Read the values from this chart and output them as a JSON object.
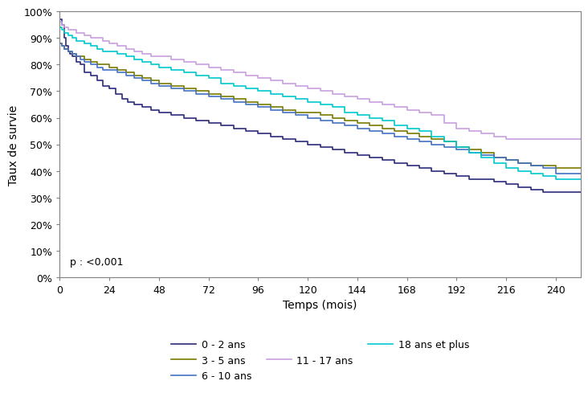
{
  "title": "",
  "xlabel": "Temps (mois)",
  "ylabel": "Taux de survie",
  "xlim": [
    0,
    252
  ],
  "ylim": [
    0.0,
    1.0
  ],
  "xticks": [
    0,
    24,
    48,
    72,
    96,
    120,
    144,
    168,
    192,
    216,
    240
  ],
  "yticks": [
    0.0,
    0.1,
    0.2,
    0.3,
    0.4,
    0.5,
    0.6,
    0.7,
    0.8,
    0.9,
    1.0
  ],
  "pvalue_text": "p : <0,001",
  "legend_entries": [
    "0 - 2 ans",
    "3 - 5 ans",
    "6 - 10 ans",
    "11 - 17 ans",
    "18 ans et plus"
  ],
  "colors": {
    "0-2": "#2b2b7a",
    "3-5": "#7a7a00",
    "6-10": "#4472c4",
    "11-17": "#c8a0e0",
    "18plus": "#00c8d0"
  },
  "series": {
    "0-2": {
      "x": [
        0,
        1,
        2,
        3,
        4,
        5,
        6,
        8,
        10,
        12,
        15,
        18,
        21,
        24,
        27,
        30,
        33,
        36,
        40,
        44,
        48,
        54,
        60,
        66,
        72,
        78,
        84,
        90,
        96,
        102,
        108,
        114,
        120,
        126,
        132,
        138,
        144,
        150,
        156,
        162,
        168,
        174,
        180,
        186,
        192,
        198,
        204,
        210,
        216,
        222,
        228,
        234,
        240,
        246,
        252
      ],
      "y": [
        0.97,
        0.95,
        0.9,
        0.87,
        0.85,
        0.84,
        0.83,
        0.81,
        0.8,
        0.77,
        0.76,
        0.74,
        0.72,
        0.71,
        0.69,
        0.67,
        0.66,
        0.65,
        0.64,
        0.63,
        0.62,
        0.61,
        0.6,
        0.59,
        0.58,
        0.57,
        0.56,
        0.55,
        0.54,
        0.53,
        0.52,
        0.51,
        0.5,
        0.49,
        0.48,
        0.47,
        0.46,
        0.45,
        0.44,
        0.43,
        0.42,
        0.41,
        0.4,
        0.39,
        0.38,
        0.37,
        0.37,
        0.36,
        0.35,
        0.34,
        0.33,
        0.32,
        0.32,
        0.32,
        0.32
      ]
    },
    "3-5": {
      "x": [
        0,
        1,
        2,
        4,
        6,
        8,
        10,
        12,
        15,
        18,
        21,
        24,
        28,
        32,
        36,
        40,
        44,
        48,
        54,
        60,
        66,
        72,
        78,
        84,
        90,
        96,
        102,
        108,
        114,
        120,
        126,
        132,
        138,
        144,
        150,
        156,
        162,
        168,
        174,
        180,
        186,
        192,
        198,
        204,
        210,
        216,
        222,
        228,
        234,
        240,
        246,
        252
      ],
      "y": [
        0.88,
        0.87,
        0.86,
        0.85,
        0.84,
        0.83,
        0.83,
        0.82,
        0.81,
        0.8,
        0.8,
        0.79,
        0.78,
        0.77,
        0.76,
        0.75,
        0.74,
        0.73,
        0.72,
        0.71,
        0.7,
        0.69,
        0.68,
        0.67,
        0.66,
        0.65,
        0.64,
        0.63,
        0.62,
        0.62,
        0.61,
        0.6,
        0.59,
        0.58,
        0.57,
        0.56,
        0.55,
        0.54,
        0.53,
        0.52,
        0.51,
        0.49,
        0.48,
        0.47,
        0.45,
        0.44,
        0.43,
        0.42,
        0.42,
        0.41,
        0.41,
        0.41
      ]
    },
    "6-10": {
      "x": [
        0,
        1,
        2,
        4,
        6,
        8,
        10,
        12,
        15,
        18,
        21,
        24,
        28,
        32,
        36,
        40,
        44,
        48,
        54,
        60,
        66,
        72,
        78,
        84,
        90,
        96,
        102,
        108,
        114,
        120,
        126,
        132,
        138,
        144,
        150,
        156,
        162,
        168,
        174,
        180,
        186,
        192,
        198,
        204,
        210,
        216,
        222,
        228,
        234,
        240,
        246,
        252
      ],
      "y": [
        0.88,
        0.87,
        0.86,
        0.85,
        0.84,
        0.83,
        0.82,
        0.81,
        0.8,
        0.79,
        0.78,
        0.78,
        0.77,
        0.76,
        0.75,
        0.74,
        0.73,
        0.72,
        0.71,
        0.7,
        0.69,
        0.68,
        0.67,
        0.66,
        0.65,
        0.64,
        0.63,
        0.62,
        0.61,
        0.6,
        0.59,
        0.58,
        0.57,
        0.56,
        0.55,
        0.54,
        0.53,
        0.52,
        0.51,
        0.5,
        0.49,
        0.48,
        0.47,
        0.46,
        0.45,
        0.44,
        0.43,
        0.42,
        0.41,
        0.39,
        0.39,
        0.39
      ]
    },
    "11-17": {
      "x": [
        0,
        1,
        2,
        4,
        6,
        8,
        10,
        12,
        15,
        18,
        21,
        24,
        28,
        32,
        36,
        40,
        44,
        48,
        54,
        60,
        66,
        72,
        78,
        84,
        90,
        96,
        102,
        108,
        114,
        120,
        126,
        132,
        138,
        144,
        150,
        156,
        162,
        168,
        174,
        180,
        186,
        192,
        198,
        204,
        210,
        216,
        222,
        228,
        234,
        240,
        246,
        252
      ],
      "y": [
        0.96,
        0.95,
        0.94,
        0.93,
        0.93,
        0.92,
        0.92,
        0.91,
        0.9,
        0.9,
        0.89,
        0.88,
        0.87,
        0.86,
        0.85,
        0.84,
        0.83,
        0.83,
        0.82,
        0.81,
        0.8,
        0.79,
        0.78,
        0.77,
        0.76,
        0.75,
        0.74,
        0.73,
        0.72,
        0.71,
        0.7,
        0.69,
        0.68,
        0.67,
        0.66,
        0.65,
        0.64,
        0.63,
        0.62,
        0.61,
        0.58,
        0.56,
        0.55,
        0.54,
        0.53,
        0.52,
        0.52,
        0.52,
        0.52,
        0.52,
        0.52,
        0.52
      ]
    },
    "18plus": {
      "x": [
        0,
        1,
        2,
        4,
        6,
        8,
        10,
        12,
        15,
        18,
        21,
        24,
        28,
        32,
        36,
        40,
        44,
        48,
        54,
        60,
        66,
        72,
        78,
        84,
        90,
        96,
        102,
        108,
        114,
        120,
        126,
        132,
        138,
        144,
        150,
        156,
        162,
        168,
        174,
        180,
        186,
        192,
        198,
        204,
        210,
        216,
        222,
        228,
        234,
        240,
        246,
        252
      ],
      "y": [
        0.94,
        0.93,
        0.92,
        0.91,
        0.9,
        0.89,
        0.89,
        0.88,
        0.87,
        0.86,
        0.85,
        0.85,
        0.84,
        0.83,
        0.82,
        0.81,
        0.8,
        0.79,
        0.78,
        0.77,
        0.76,
        0.75,
        0.73,
        0.72,
        0.71,
        0.7,
        0.69,
        0.68,
        0.67,
        0.66,
        0.65,
        0.64,
        0.62,
        0.61,
        0.6,
        0.59,
        0.57,
        0.56,
        0.55,
        0.53,
        0.51,
        0.49,
        0.47,
        0.45,
        0.43,
        0.41,
        0.4,
        0.39,
        0.38,
        0.37,
        0.37,
        0.37
      ]
    }
  },
  "legend_ncol_row1": 3,
  "legend_ncol_row2": 2
}
